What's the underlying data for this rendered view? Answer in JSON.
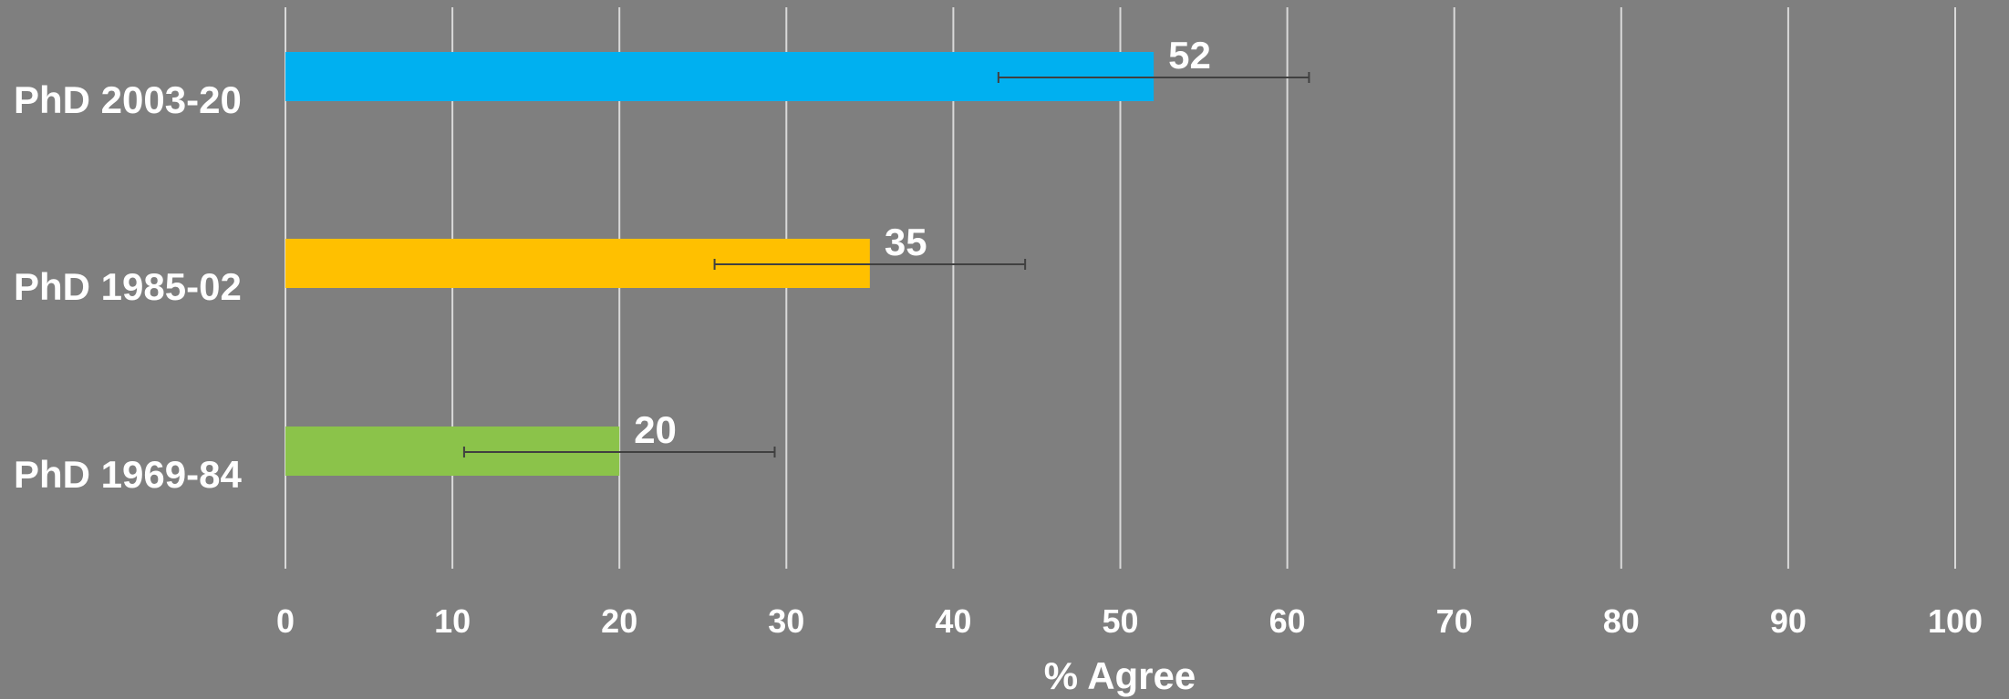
{
  "chart_data": {
    "type": "bar",
    "orientation": "horizontal",
    "categories": [
      "PhD 2003-20",
      "PhD 1985-02",
      "PhD 1969-84"
    ],
    "values": [
      52,
      35,
      20
    ],
    "error_bars": [
      {
        "low": 42.7,
        "high": 61.3
      },
      {
        "low": 25.7,
        "high": 44.3
      },
      {
        "low": 10.7,
        "high": 29.3
      }
    ],
    "bar_colors": [
      "#00b0f0",
      "#ffc000",
      "#8bc34a"
    ],
    "data_labels": [
      "52",
      "35",
      "20"
    ],
    "xlabel": "% Agree",
    "xlim": [
      0,
      100
    ],
    "xticks": [
      "0",
      "10",
      "20",
      "30",
      "40",
      "50",
      "60",
      "70",
      "80",
      "90",
      "100"
    ],
    "grid": "vertical",
    "legend": "none",
    "background_color": "#7f7f7f",
    "gridline_color": "#d9d9d9",
    "error_bar_color": "#404040"
  }
}
